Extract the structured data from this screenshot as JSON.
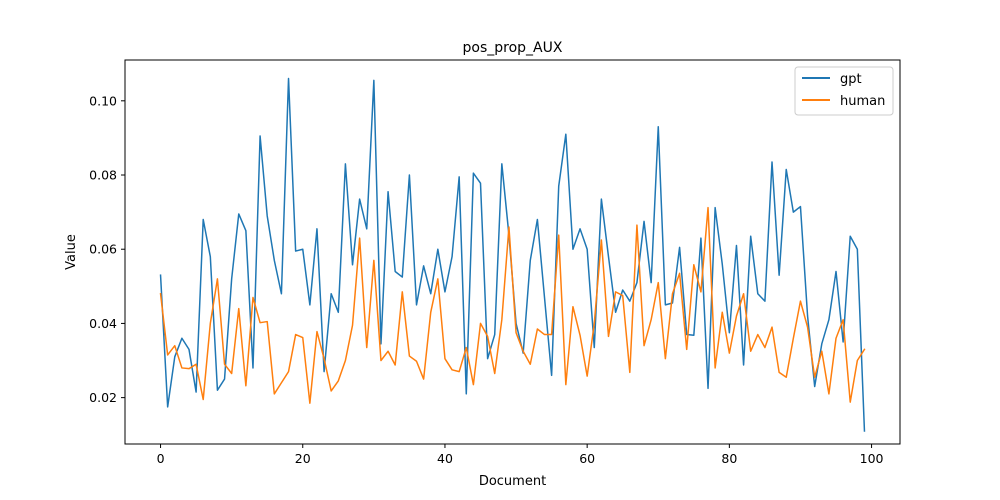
{
  "chart_data": {
    "type": "line",
    "title": "pos_prop_AUX",
    "xlabel": "Document",
    "ylabel": "Value",
    "xlim": [
      -5,
      104
    ],
    "ylim": [
      0.0075,
      0.111
    ],
    "xticks": [
      0,
      20,
      40,
      60,
      80,
      100
    ],
    "yticks": [
      0.02,
      0.04,
      0.06,
      0.08,
      0.1
    ],
    "xtick_labels": [
      "0",
      "20",
      "40",
      "60",
      "80",
      "100"
    ],
    "ytick_labels": [
      "0.02",
      "0.04",
      "0.06",
      "0.08",
      "0.10"
    ],
    "grid": false,
    "legend_position": "top-right",
    "series": [
      {
        "name": "gpt",
        "color": "#1f77b4",
        "x": [
          0,
          1,
          2,
          3,
          4,
          5,
          6,
          7,
          8,
          9,
          10,
          11,
          12,
          13,
          14,
          15,
          16,
          17,
          18,
          19,
          20,
          21,
          22,
          23,
          24,
          25,
          26,
          27,
          28,
          29,
          30,
          31,
          32,
          33,
          34,
          35,
          36,
          37,
          38,
          39,
          40,
          41,
          42,
          43,
          44,
          45,
          46,
          47,
          48,
          49,
          50,
          51,
          52,
          53,
          54,
          55,
          56,
          57,
          58,
          59,
          60,
          61,
          62,
          63,
          64,
          65,
          66,
          67,
          68,
          69,
          70,
          71,
          72,
          73,
          74,
          75,
          76,
          77,
          78,
          79,
          80,
          81,
          82,
          83,
          84,
          85,
          86,
          87,
          88,
          89,
          90,
          91,
          92,
          93,
          94,
          95,
          96,
          97,
          98,
          99
        ],
        "values": [
          0.053,
          0.0175,
          0.031,
          0.036,
          0.033,
          0.0215,
          0.068,
          0.058,
          0.022,
          0.025,
          0.052,
          0.0695,
          0.065,
          0.028,
          0.0905,
          0.069,
          0.057,
          0.048,
          0.106,
          0.0595,
          0.06,
          0.045,
          0.0655,
          0.027,
          0.048,
          0.043,
          0.083,
          0.0558,
          0.0735,
          0.0655,
          0.1055,
          0.0345,
          0.0755,
          0.054,
          0.0525,
          0.08,
          0.045,
          0.0555,
          0.048,
          0.06,
          0.0485,
          0.058,
          0.0795,
          0.021,
          0.0805,
          0.0778,
          0.0305,
          0.037,
          0.083,
          0.0638,
          0.04,
          0.032,
          0.057,
          0.068,
          0.047,
          0.026,
          0.077,
          0.091,
          0.06,
          0.0655,
          0.06,
          0.0335,
          0.0735,
          0.058,
          0.043,
          0.049,
          0.046,
          0.051,
          0.0675,
          0.051,
          0.093,
          0.045,
          0.0455,
          0.0605,
          0.037,
          0.0368,
          0.063,
          0.0225,
          0.0712,
          0.056,
          0.0375,
          0.061,
          0.0288,
          0.0635,
          0.048,
          0.046,
          0.0835,
          0.053,
          0.0815,
          0.07,
          0.0715,
          0.042,
          0.023,
          0.0345,
          0.041,
          0.054,
          0.035,
          0.0635,
          0.06,
          0.011
        ]
      },
      {
        "name": "human",
        "color": "#ff7f0e",
        "x": [
          0,
          1,
          2,
          3,
          4,
          5,
          6,
          7,
          8,
          9,
          10,
          11,
          12,
          13,
          14,
          15,
          16,
          17,
          18,
          19,
          20,
          21,
          22,
          23,
          24,
          25,
          26,
          27,
          28,
          29,
          30,
          31,
          32,
          33,
          34,
          35,
          36,
          37,
          38,
          39,
          40,
          41,
          42,
          43,
          44,
          45,
          46,
          47,
          48,
          49,
          50,
          51,
          52,
          53,
          54,
          55,
          56,
          57,
          58,
          59,
          60,
          61,
          62,
          63,
          64,
          65,
          66,
          67,
          68,
          69,
          70,
          71,
          72,
          73,
          74,
          75,
          76,
          77,
          78,
          79,
          80,
          81,
          82,
          83,
          84,
          85,
          86,
          87,
          88,
          89,
          90,
          91,
          92,
          93,
          94,
          95,
          96,
          97,
          98,
          99
        ],
        "values": [
          0.048,
          0.0315,
          0.034,
          0.028,
          0.0278,
          0.029,
          0.0195,
          0.04,
          0.052,
          0.029,
          0.0265,
          0.044,
          0.0232,
          0.047,
          0.0402,
          0.0405,
          0.021,
          0.024,
          0.027,
          0.037,
          0.0362,
          0.0185,
          0.0378,
          0.0305,
          0.0218,
          0.0245,
          0.03,
          0.0395,
          0.063,
          0.0335,
          0.057,
          0.03,
          0.0325,
          0.0288,
          0.0485,
          0.0312,
          0.0298,
          0.025,
          0.043,
          0.052,
          0.0305,
          0.0275,
          0.027,
          0.0335,
          0.0235,
          0.04,
          0.0365,
          0.0265,
          0.041,
          0.066,
          0.0375,
          0.0325,
          0.029,
          0.0385,
          0.037,
          0.037,
          0.0638,
          0.0235,
          0.0445,
          0.0368,
          0.0258,
          0.04,
          0.0625,
          0.0365,
          0.0485,
          0.0475,
          0.0268,
          0.0665,
          0.034,
          0.041,
          0.051,
          0.0305,
          0.048,
          0.0535,
          0.033,
          0.0558,
          0.0485,
          0.0712,
          0.028,
          0.043,
          0.032,
          0.042,
          0.048,
          0.0325,
          0.037,
          0.0335,
          0.039,
          0.0268,
          0.0255,
          0.036,
          0.046,
          0.039,
          0.0255,
          0.0325,
          0.021,
          0.036,
          0.041,
          0.0188,
          0.03,
          0.033
        ]
      }
    ]
  }
}
